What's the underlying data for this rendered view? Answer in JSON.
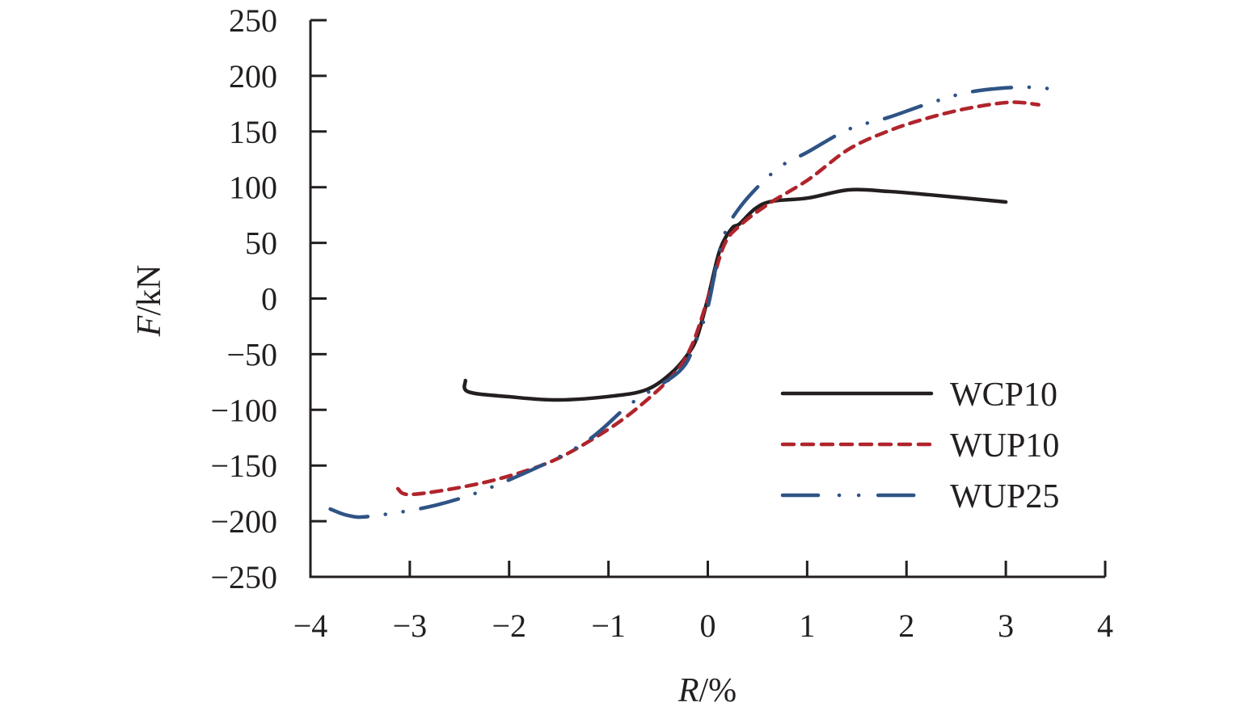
{
  "chart_data": {
    "type": "line",
    "title": "",
    "xlabel_var": "R",
    "xlabel_unit": "/%",
    "ylabel_var": "F",
    "ylabel_unit": "/kN",
    "xlim": [
      -4,
      4
    ],
    "ylim": [
      -250,
      250
    ],
    "xticks": [
      -4,
      -3,
      -2,
      -1,
      0,
      1,
      2,
      3,
      4
    ],
    "yticks": [
      250,
      200,
      150,
      100,
      50,
      0,
      -50,
      -100,
      -150,
      -200,
      -250
    ],
    "xtick_labels": [
      "−4",
      "−3",
      "−2",
      "−1",
      "0",
      "1",
      "2",
      "3",
      "4"
    ],
    "ytick_labels": [
      "250",
      "200",
      "150",
      "100",
      "50",
      "0",
      "−50",
      "−100",
      "−150",
      "−200",
      "−250"
    ],
    "grid": false,
    "legend_position": "bottom-right",
    "series": [
      {
        "name": "WCP10",
        "color": "#231f20",
        "style": "solid",
        "x": [
          -2.44,
          -2.41,
          -2.0,
          -1.51,
          -0.94,
          -0.61,
          -0.37,
          -0.21,
          -0.11,
          0,
          0.12,
          0.24,
          0.32,
          0.48,
          0.65,
          1.01,
          1.42,
          1.82,
          2.23,
          3.0
        ],
        "y": [
          -73.7,
          -83.8,
          -88.2,
          -91.1,
          -87.4,
          -81.6,
          -67.1,
          -51.1,
          -35.2,
          0,
          43.2,
          62.8,
          67.1,
          80.9,
          87.4,
          90.3,
          97.6,
          96.2,
          93.2,
          86.7
        ]
      },
      {
        "name": "WUP10",
        "color": "#b0242c",
        "style": "dashed",
        "x": [
          -3.12,
          -3.01,
          -2.57,
          -2.08,
          -1.59,
          -1.18,
          -0.78,
          -0.37,
          -0.17,
          0,
          0.16,
          0.32,
          0.61,
          1.01,
          1.42,
          1.83,
          2.23,
          2.64,
          3.05,
          3.33
        ],
        "y": [
          -170.9,
          -176,
          -170.9,
          -161.4,
          -146.9,
          -127.4,
          -103.4,
          -70.7,
          -43.9,
          0,
          47.1,
          65.3,
          84.9,
          106.7,
          134.2,
          150.9,
          162.5,
          171.2,
          176.3,
          174.1
        ]
      },
      {
        "name": "WUP25",
        "color": "#2f5385",
        "style": "dash-dot-dot",
        "x": [
          -3.8,
          -3.62,
          -3.4,
          -2.73,
          -2.08,
          -1.27,
          -0.78,
          -0.29,
          -0.13,
          0,
          0.14,
          0.32,
          0.69,
          1.01,
          1.42,
          1.83,
          2.23,
          2.64,
          3.13,
          3.46
        ],
        "y": [
          -189.1,
          -194.9,
          -195.6,
          -185.5,
          -165.9,
          -131.1,
          -94.8,
          -65.7,
          -40.3,
          -7.6,
          50.4,
          81.6,
          115.8,
          131.8,
          152.1,
          163,
          175.4,
          185.5,
          189.8,
          188.4
        ]
      }
    ]
  }
}
